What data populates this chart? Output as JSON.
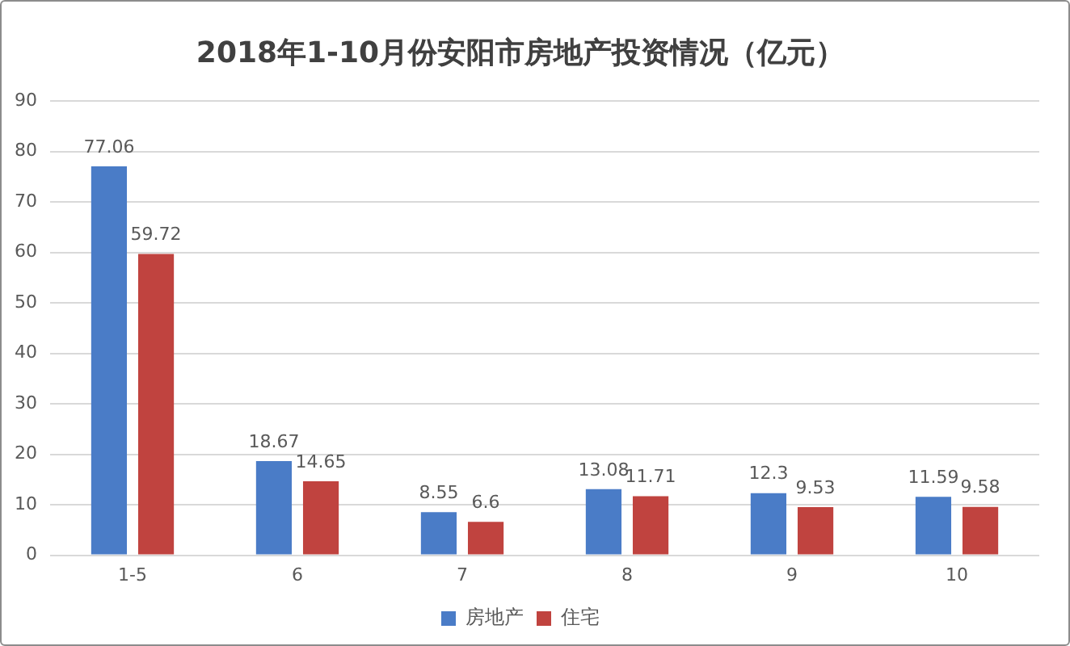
{
  "chart_data": {
    "type": "bar",
    "title": "2018年1-10月份安阳市房地产投资情况（亿元）",
    "categories": [
      "1-5",
      "6",
      "7",
      "8",
      "9",
      "10"
    ],
    "series": [
      {
        "name": "房地产",
        "color": "#4a7cc7",
        "values": [
          77.06,
          18.67,
          8.55,
          13.08,
          12.3,
          11.59
        ]
      },
      {
        "name": "住宅",
        "color": "#c0433f",
        "values": [
          59.72,
          14.65,
          6.6,
          11.71,
          9.53,
          9.58
        ]
      }
    ],
    "ylim": [
      0,
      90
    ],
    "yticks": [
      0,
      10,
      20,
      30,
      40,
      50,
      60,
      70,
      80,
      90
    ],
    "grid": "y",
    "legend": "bottom",
    "data_labels": true
  }
}
